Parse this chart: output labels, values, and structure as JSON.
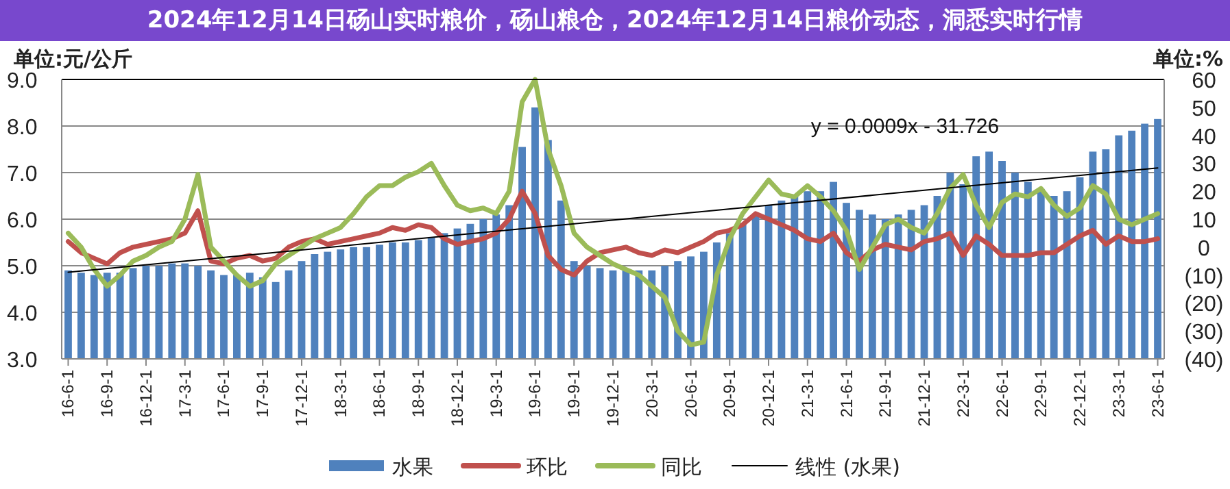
{
  "chart_data": {
    "type": "bar",
    "title": "2024年12月14日砀山实时粮价，砀山粮仓，2024年12月14日粮价动态，洞悉实时行情",
    "ylabel": "单位:元/公斤",
    "y2label": "单位:%",
    "categories": [
      "16-6-1",
      null,
      null,
      "16-9-1",
      null,
      null,
      "16-12-1",
      null,
      null,
      "17-3-1",
      null,
      null,
      "17-6-1",
      null,
      null,
      "17-9-1",
      null,
      null,
      "17-12-1",
      null,
      null,
      "18-3-1",
      null,
      null,
      "18-6-1",
      null,
      null,
      "18-9-1",
      null,
      null,
      "18-12-1",
      null,
      null,
      "19-3-1",
      null,
      null,
      "19-6-1",
      null,
      null,
      "19-9-1",
      null,
      null,
      "19-12-1",
      null,
      null,
      "20-3-1",
      null,
      null,
      "20-6-1",
      null,
      null,
      "20-9-1",
      null,
      null,
      "20-12-1",
      null,
      null,
      "21-3-1",
      null,
      null,
      "21-6-1",
      null,
      null,
      "21-9-1",
      null,
      null,
      "21-12-1",
      null,
      null,
      "22-3-1",
      null,
      null,
      "22-6-1",
      null,
      null,
      "22-9-1",
      null,
      null,
      "22-12-1",
      null,
      null,
      "23-3-1",
      null,
      null,
      "23-6-1"
    ],
    "series": [
      {
        "name": "水果",
        "color": "#4f81bd",
        "values": [
          4.9,
          4.85,
          4.8,
          4.85,
          4.85,
          4.95,
          5.0,
          5.0,
          5.05,
          5.05,
          5.0,
          4.9,
          4.8,
          4.8,
          4.85,
          4.75,
          4.65,
          4.9,
          5.1,
          5.25,
          5.3,
          5.35,
          5.4,
          5.4,
          5.45,
          5.5,
          5.5,
          5.55,
          5.6,
          5.7,
          5.8,
          5.9,
          6.0,
          6.1,
          6.3,
          7.55,
          8.4,
          7.7,
          6.4,
          5.1,
          5.0,
          4.95,
          4.9,
          4.9,
          4.9,
          4.9,
          5.0,
          5.1,
          5.2,
          5.3,
          5.5,
          5.7,
          5.9,
          6.1,
          6.3,
          6.4,
          6.5,
          6.6,
          6.6,
          6.8,
          6.35,
          6.2,
          6.1,
          6.0,
          6.1,
          6.2,
          6.3,
          6.5,
          7.0,
          6.75,
          7.35,
          7.45,
          7.25,
          7.0,
          6.8,
          6.65,
          6.5,
          6.6,
          6.9,
          7.45,
          7.5,
          7.8,
          7.9,
          8.05,
          8.15
        ]
      },
      {
        "name": "环比",
        "type": "line",
        "axis": "y2",
        "color": "#c0504d",
        "values": [
          2,
          -2,
          -4,
          -6,
          -2,
          0,
          1,
          2,
          3,
          5,
          13,
          -5,
          -6,
          -4,
          -3,
          -5,
          -4,
          0,
          2,
          3,
          1,
          2,
          3,
          4,
          5,
          7,
          6,
          8,
          7,
          3,
          1,
          2,
          3,
          5,
          10,
          20,
          12,
          -3,
          -8,
          -10,
          -5,
          -2,
          -1,
          0,
          -2,
          -3,
          -1,
          -2,
          0,
          2,
          5,
          6,
          8,
          12,
          10,
          8,
          6,
          3,
          2,
          5,
          -2,
          -5,
          -1,
          1,
          0,
          -1,
          2,
          3,
          5,
          -3,
          4,
          1,
          -3,
          -3,
          -3,
          -2,
          -2,
          1,
          4,
          6,
          1,
          4,
          2,
          2,
          3
        ]
      },
      {
        "name": "同比",
        "type": "line",
        "axis": "y2",
        "color": "#9bbb59",
        "values": [
          5,
          0,
          -8,
          -14,
          -10,
          -5,
          -3,
          0,
          2,
          10,
          26,
          0,
          -5,
          -10,
          -14,
          -12,
          -6,
          -3,
          0,
          3,
          5,
          7,
          12,
          18,
          22,
          22,
          25,
          27,
          30,
          22,
          15,
          13,
          14,
          12,
          20,
          52,
          60,
          35,
          22,
          5,
          0,
          -3,
          -6,
          -8,
          -10,
          -14,
          -18,
          -30,
          -35,
          -34,
          -10,
          3,
          12,
          18,
          24,
          19,
          18,
          22,
          18,
          13,
          6,
          -8,
          0,
          8,
          10,
          7,
          5,
          12,
          21,
          26,
          15,
          7,
          16,
          19,
          18,
          21,
          15,
          11,
          14,
          22,
          19,
          10,
          8,
          10,
          12
        ]
      },
      {
        "name": "线性 (水果)",
        "type": "line",
        "color": "#000000",
        "x": [
          "16-6-1",
          "23-6-1"
        ],
        "values": [
          4.86,
          7.1
        ]
      }
    ],
    "ylim": [
      3,
      9
    ],
    "yticks": [
      {
        "value": 3,
        "label": "3.0"
      },
      {
        "value": 4,
        "label": "4.0"
      },
      {
        "value": 5,
        "label": "5.0"
      },
      {
        "value": 6,
        "label": "6.0"
      },
      {
        "value": 7,
        "label": "7.0"
      },
      {
        "value": 8,
        "label": "8.0"
      },
      {
        "value": 9,
        "label": "9.0"
      }
    ],
    "y2lim": [
      -40,
      60
    ],
    "y2ticks": [
      {
        "value": -40,
        "label": "(40)"
      },
      {
        "value": -30,
        "label": "(30)"
      },
      {
        "value": -20,
        "label": "(20)"
      },
      {
        "value": -10,
        "label": "(10)"
      },
      0,
      10,
      20,
      30,
      40,
      50,
      60
    ],
    "grid": "y",
    "legend": "bottom",
    "annotations": [
      "y = 0.0009x - 31.726"
    ]
  }
}
